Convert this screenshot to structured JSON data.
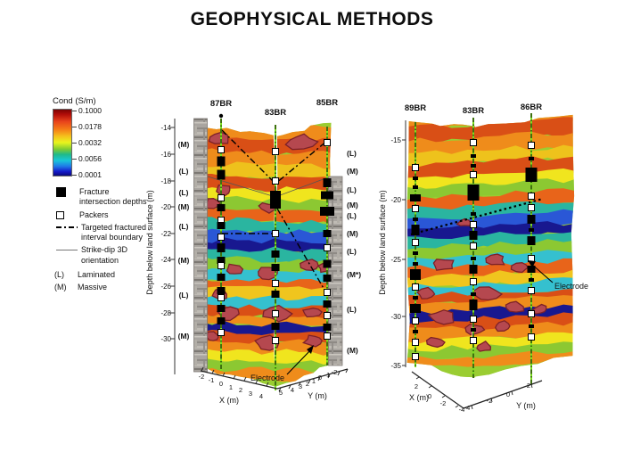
{
  "title": "GEOPHYSICAL METHODS",
  "legend": {
    "colorbar_title": "Cond (S/m)",
    "colorbar_ticks": [
      "0.1000",
      "0.0178",
      "0.0032",
      "0.0056",
      "0.0001"
    ],
    "items": {
      "fracture": "Fracture intersection depths",
      "packers": "Packers",
      "targeted": "Targeted fractured interval boundary",
      "strike": "Strike-dip 3D orientation",
      "laminated_key": "(L)",
      "laminated": "Laminated",
      "massive_key": "(M)",
      "massive": "Massive"
    }
  },
  "colors": {
    "colorbar_stops": [
      "#7a0403",
      "#b00c08",
      "#e8431c",
      "#f57d17",
      "#f5c51d",
      "#e8f51e",
      "#7ecb32",
      "#1fb98a",
      "#18c7d8",
      "#1f78e8",
      "#1418c8",
      "#0a0a7a"
    ],
    "fracture_marker": "#000000",
    "packer_marker": "#ffffff",
    "borehole_line": "#7be01e",
    "high_conductivity_blob": "#b5484f"
  },
  "chart_data": {
    "type": "heatmap",
    "title": "GEOPHYSICAL METHODS",
    "colorbar": {
      "label": "Cond (S/m)",
      "tick_labels": [
        "0.1000",
        "0.0178",
        "0.0032",
        "0.0056",
        "0.0001"
      ]
    },
    "panels": [
      {
        "boreholes": [
          "87BR",
          "83BR",
          "85BR"
        ],
        "ylabel": "Depth below land surface (m)",
        "yticks": [
          "-14",
          "-16",
          "-18",
          "-20",
          "-22",
          "-24",
          "-26",
          "-28",
          "-30"
        ],
        "xlabel": "X (m)",
        "xticks": [
          "-2",
          "-1",
          "0",
          "1",
          "2",
          "3",
          "4"
        ],
        "y2label": "Y (m)",
        "y2ticks": [
          "5",
          "4",
          "3",
          "2",
          "1",
          "0",
          "-1",
          "-2"
        ],
        "left_lithology": [
          "(M)",
          "(L)",
          "(L)",
          "(M)",
          "(L)",
          "(M)",
          "(L)",
          "(M)"
        ],
        "right_lithology": [
          "(L)",
          "(M)",
          "(L)",
          "(M)",
          "(L)",
          "(M)",
          "(L)",
          "(M*)",
          "(L)",
          "(M)"
        ],
        "annotation": "Electrode"
      },
      {
        "boreholes": [
          "89BR",
          "83BR",
          "86BR"
        ],
        "ylabel": "Depth below land surface (m)",
        "yticks": [
          "-15",
          "-20",
          "-25",
          "-30",
          "-35"
        ],
        "xlabel": "X (m)",
        "xticks": [
          "2",
          "0",
          "-2",
          "-4"
        ],
        "y2label": "Y (m)",
        "y2ticks": [
          "-4",
          "-2",
          "0",
          "2"
        ],
        "annotation": "Electrode"
      }
    ]
  }
}
